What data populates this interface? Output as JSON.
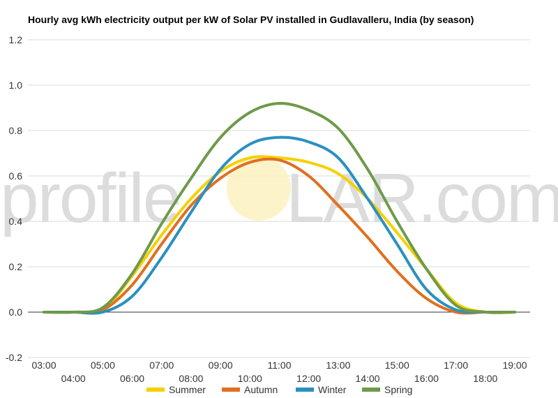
{
  "chart_data": {
    "type": "line",
    "title": "Hourly avg kWh electricity output per kW of Solar PV installed in Gudlavalleru, India (by season)",
    "xlabel": "",
    "ylabel": "",
    "x": [
      "03:00",
      "04:00",
      "05:00",
      "06:00",
      "07:00",
      "08:00",
      "09:00",
      "10:00",
      "11:00",
      "12:00",
      "13:00",
      "14:00",
      "15:00",
      "16:00",
      "17:00",
      "18:00",
      "19:00"
    ],
    "ylim": [
      -0.2,
      1.2
    ],
    "yticks": [
      "-0.2",
      "0.0",
      "0.2",
      "0.4",
      "0.6",
      "0.8",
      "1.0",
      "1.2"
    ],
    "grid": true,
    "legend_position": "bottom",
    "series": [
      {
        "name": "Summer",
        "color": "#f5d000",
        "values": [
          0,
          0,
          0.01,
          0.16,
          0.34,
          0.5,
          0.62,
          0.68,
          0.68,
          0.66,
          0.61,
          0.5,
          0.35,
          0.19,
          0.04,
          0,
          0
        ]
      },
      {
        "name": "Autumn",
        "color": "#e07020",
        "values": [
          0,
          0,
          0.01,
          0.12,
          0.3,
          0.47,
          0.59,
          0.66,
          0.67,
          0.6,
          0.47,
          0.33,
          0.18,
          0.06,
          0,
          0,
          0
        ]
      },
      {
        "name": "Winter",
        "color": "#2b90c0",
        "values": [
          0,
          0,
          0,
          0.07,
          0.24,
          0.44,
          0.63,
          0.74,
          0.77,
          0.75,
          0.68,
          0.5,
          0.3,
          0.1,
          0.01,
          0,
          0
        ]
      },
      {
        "name": "Spring",
        "color": "#6e9a4a",
        "values": [
          0,
          0,
          0.02,
          0.17,
          0.39,
          0.59,
          0.77,
          0.88,
          0.92,
          0.89,
          0.81,
          0.63,
          0.4,
          0.19,
          0.03,
          0,
          0
        ]
      }
    ]
  },
  "watermark": {
    "left": "profile",
    "right": "LAR.com"
  }
}
